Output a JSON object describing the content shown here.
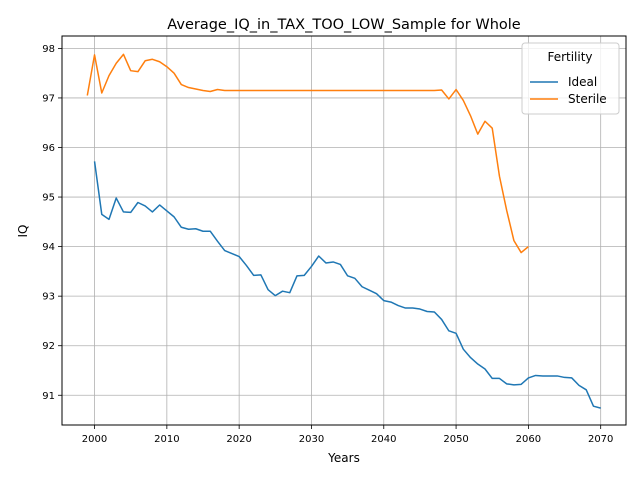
{
  "chart_data": {
    "type": "line",
    "title": "Average_IQ_in_TAX_TOO_LOW_Sample for Whole",
    "xlabel": "Years",
    "ylabel": "IQ",
    "xlim": [
      1995.5,
      2073.5
    ],
    "ylim": [
      90.4,
      98.25
    ],
    "xticks": [
      2000,
      2010,
      2020,
      2030,
      2040,
      2050,
      2060,
      2070
    ],
    "yticks": [
      91,
      92,
      93,
      94,
      95,
      96,
      97,
      98
    ],
    "grid": true,
    "legend": {
      "title": "Fertility",
      "placement": "top-right"
    },
    "series": [
      {
        "name": "Ideal",
        "color": "#1f77b4",
        "x": [
          2000,
          2001,
          2002,
          2003,
          2004,
          2005,
          2006,
          2007,
          2008,
          2009,
          2010,
          2011,
          2012,
          2013,
          2014,
          2015,
          2016,
          2017,
          2018,
          2019,
          2020,
          2021,
          2022,
          2023,
          2024,
          2025,
          2026,
          2027,
          2028,
          2029,
          2030,
          2031,
          2032,
          2033,
          2034,
          2035,
          2036,
          2037,
          2038,
          2039,
          2040,
          2041,
          2042,
          2043,
          2044,
          2045,
          2046,
          2047,
          2048,
          2049,
          2050,
          2051,
          2052,
          2053,
          2054,
          2055,
          2056,
          2057,
          2058,
          2059,
          2060,
          2061,
          2062,
          2063,
          2064,
          2065,
          2066,
          2067,
          2068,
          2069,
          2070
        ],
        "values": [
          95.72,
          94.65,
          94.55,
          94.98,
          94.7,
          94.69,
          94.89,
          94.82,
          94.7,
          94.84,
          94.72,
          94.6,
          94.39,
          94.35,
          94.36,
          94.31,
          94.31,
          94.11,
          93.92,
          93.86,
          93.8,
          93.62,
          93.42,
          93.43,
          93.13,
          93.01,
          93.1,
          93.07,
          93.41,
          93.42,
          93.6,
          93.81,
          93.67,
          93.69,
          93.64,
          93.41,
          93.36,
          93.19,
          93.12,
          93.05,
          92.91,
          92.88,
          92.81,
          92.76,
          92.76,
          92.74,
          92.69,
          92.68,
          92.53,
          92.3,
          92.25,
          91.93,
          91.76,
          91.63,
          91.53,
          91.34,
          91.34,
          91.23,
          91.21,
          91.22,
          91.35,
          91.4,
          91.39,
          91.39,
          91.39,
          91.36,
          91.35,
          91.2,
          91.11,
          90.78,
          90.74
        ]
      },
      {
        "name": "Sterile",
        "color": "#ff7f0e",
        "x": [
          1999,
          2000,
          2001,
          2002,
          2003,
          2004,
          2005,
          2006,
          2007,
          2008,
          2009,
          2010,
          2011,
          2012,
          2013,
          2014,
          2015,
          2016,
          2017,
          2018,
          2019,
          2020,
          2021,
          2022,
          2023,
          2024,
          2025,
          2026,
          2027,
          2028,
          2029,
          2030,
          2031,
          2032,
          2033,
          2034,
          2035,
          2036,
          2037,
          2038,
          2039,
          2040,
          2041,
          2042,
          2043,
          2044,
          2045,
          2046,
          2047,
          2048,
          2049,
          2050,
          2051,
          2052,
          2053,
          2054,
          2055,
          2056,
          2057,
          2058,
          2059,
          2060
        ],
        "values": [
          97.05,
          97.87,
          97.1,
          97.45,
          97.7,
          97.88,
          97.55,
          97.53,
          97.75,
          97.78,
          97.73,
          97.63,
          97.5,
          97.27,
          97.21,
          97.18,
          97.15,
          97.13,
          97.17,
          97.15,
          97.15,
          97.15,
          97.15,
          97.15,
          97.15,
          97.15,
          97.15,
          97.15,
          97.15,
          97.15,
          97.15,
          97.15,
          97.15,
          97.15,
          97.15,
          97.15,
          97.15,
          97.15,
          97.15,
          97.15,
          97.15,
          97.15,
          97.15,
          97.15,
          97.15,
          97.15,
          97.15,
          97.15,
          97.15,
          97.16,
          96.98,
          97.17,
          96.95,
          96.64,
          96.27,
          96.53,
          96.39,
          95.42,
          94.73,
          94.12,
          93.88,
          94.0
        ]
      }
    ]
  }
}
